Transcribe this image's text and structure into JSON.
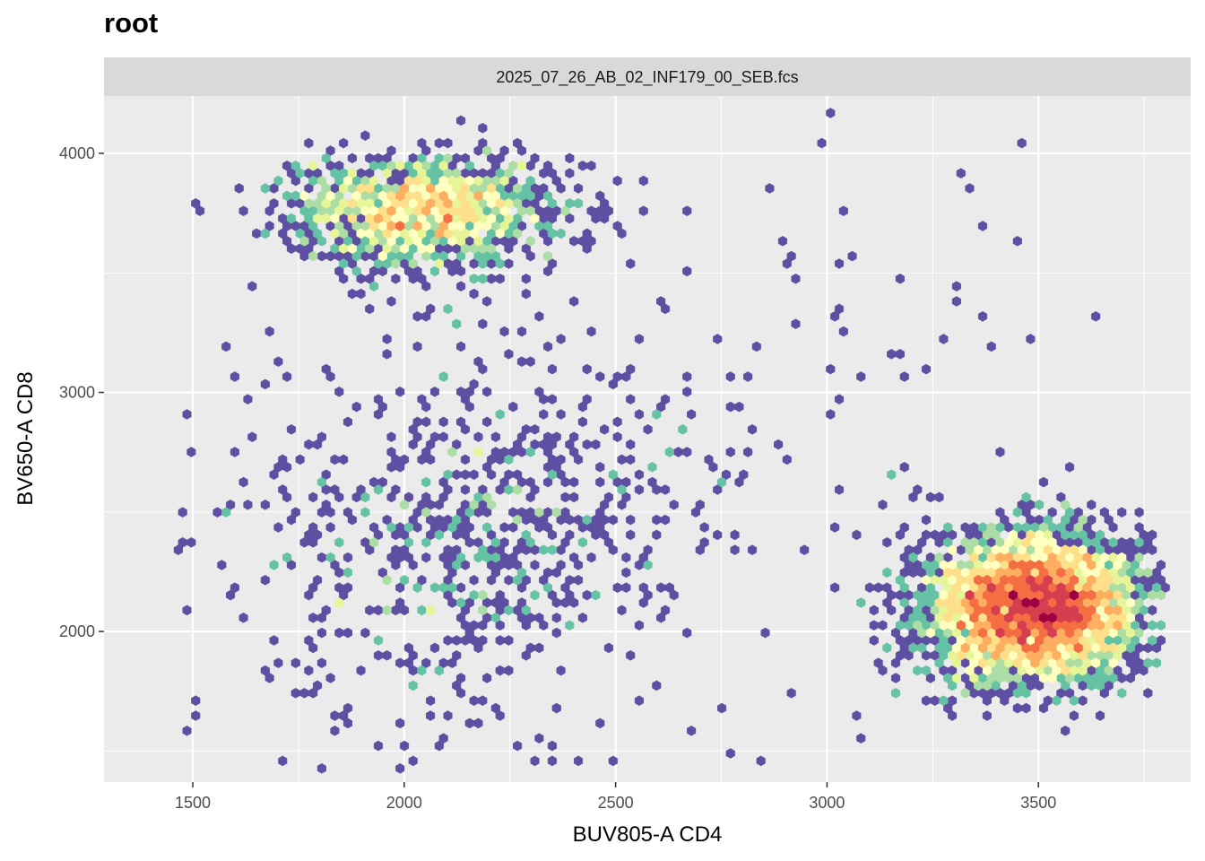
{
  "title": "root",
  "chart_data": {
    "type": "hexbin",
    "facet_label": "2025_07_26_AB_02_INF179_00_SEB.fcs",
    "xlabel": "BUV805-A CD4",
    "ylabel": "BV650-A CD8",
    "xlim": [
      1290,
      3860
    ],
    "ylim": [
      1370,
      4240
    ],
    "x_ticks": [
      1500,
      2000,
      2500,
      3000,
      3500
    ],
    "y_ticks": [
      2000,
      3000,
      4000
    ],
    "palette": [
      "#5e4fa2",
      "#3288bd",
      "#66c2a5",
      "#abdda4",
      "#e6f598",
      "#ffffbf",
      "#fee08b",
      "#fdae61",
      "#f46d43",
      "#d53e4f",
      "#9e0142"
    ],
    "panel_background": "#ebebeb",
    "strip_background": "#d9d9d9",
    "grid": true,
    "populations": [
      {
        "name": "",
        "cx": 2040,
        "cy": 3760,
        "sx": 150,
        "sy": 110,
        "n": 1400,
        "cluster": "dense"
      },
      {
        "name": "",
        "cx": 2150,
        "cy": 2350,
        "sx": 240,
        "sy": 330,
        "n": 650,
        "cluster": "diffuse"
      },
      {
        "name": "",
        "cx": 3490,
        "cy": 2100,
        "sx": 120,
        "sy": 150,
        "n": 4200,
        "cluster": "dense"
      },
      {
        "name": "",
        "cx": 2550,
        "cy": 2900,
        "sx": 520,
        "sy": 650,
        "n": 180,
        "cluster": "sparse"
      }
    ]
  }
}
